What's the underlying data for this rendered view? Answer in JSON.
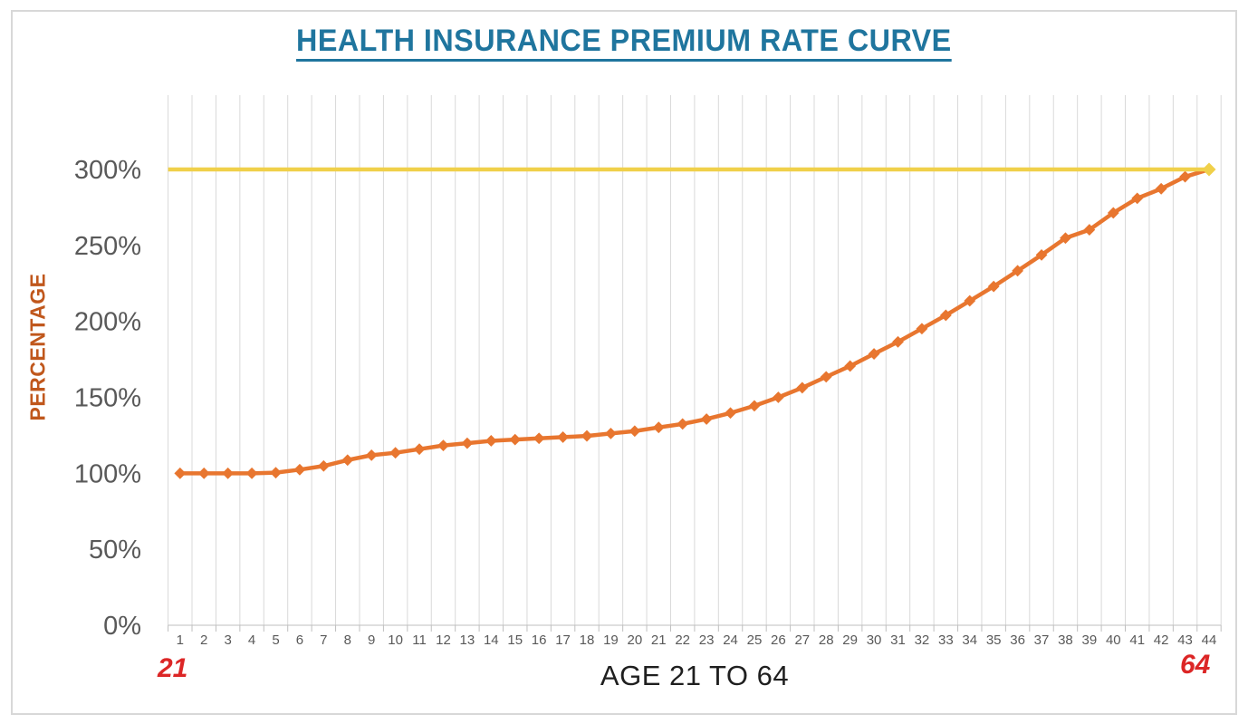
{
  "page": {
    "background": "#FFFFFF",
    "border_color": "#D8D8D8"
  },
  "chart_data": {
    "type": "line",
    "title": "HEALTH INSURANCE PREMIUM RATE CURVE",
    "xlabel": "AGE 21 TO 64",
    "ylabel": "PERCENTAGE",
    "annotations": {
      "x_start": "21",
      "x_end": "64"
    },
    "x_tick_labels": [
      "1",
      "2",
      "3",
      "4",
      "5",
      "6",
      "7",
      "8",
      "9",
      "10",
      "11",
      "12",
      "13",
      "14",
      "15",
      "16",
      "17",
      "18",
      "19",
      "20",
      "21",
      "22",
      "23",
      "24",
      "25",
      "26",
      "27",
      "28",
      "29",
      "30",
      "31",
      "32",
      "33",
      "34",
      "35",
      "36",
      "37",
      "38",
      "39",
      "40",
      "41",
      "42",
      "43",
      "44"
    ],
    "y_ticks": [
      "0%",
      "50%",
      "100%",
      "150%",
      "200%",
      "250%",
      "300%"
    ],
    "y_tick_values": [
      0,
      50,
      100,
      150,
      200,
      250,
      300
    ],
    "ylim": [
      0,
      349
    ],
    "grid": "vertical-only",
    "legend": "none",
    "series": [
      {
        "name": "premium-rate-curve",
        "type": "line",
        "marker": "diamond",
        "color": "#E8762F",
        "values": [
          100,
          100,
          100,
          100,
          100.4,
          102.4,
          104.8,
          108.7,
          111.9,
          113.5,
          115.9,
          118.3,
          119.8,
          121.4,
          122.2,
          123,
          123.8,
          124.6,
          126.2,
          127.8,
          130.2,
          132.5,
          135.7,
          139.7,
          144.4,
          150,
          156.3,
          163.5,
          170.6,
          178.6,
          186.5,
          195.2,
          204,
          213.5,
          223,
          233.3,
          243.7,
          254.8,
          260.3,
          271.4,
          281,
          287.3,
          295.2,
          300
        ]
      },
      {
        "name": "cap-300-reference-line",
        "type": "reference-line",
        "marker": "diamond-at-end",
        "color": "#F0D04A",
        "value": 300
      }
    ],
    "colors": {
      "title": "#1F759E",
      "ylabel": "#C0571C",
      "xlabel": "#1F1F1F",
      "annotation": "#DC2626",
      "gridline": "#D9D9D9",
      "axis": "#BFBFBF",
      "tick_text": "#595959"
    }
  }
}
